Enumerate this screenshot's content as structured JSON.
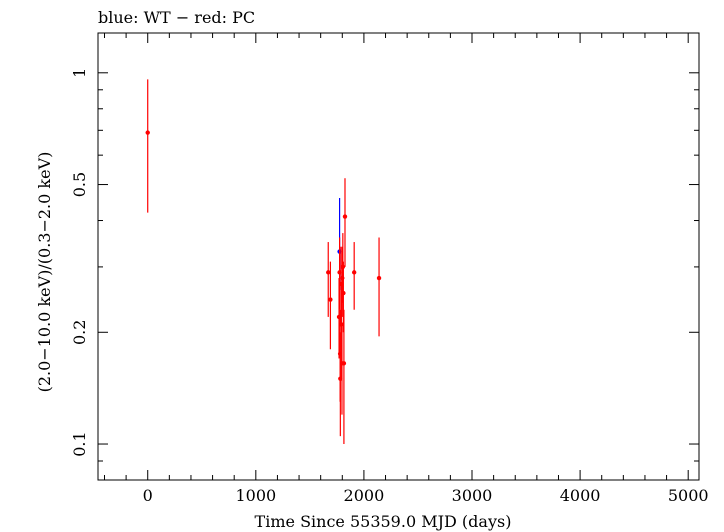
{
  "header": {
    "title": "blue: WT − red: PC"
  },
  "chart_data": {
    "type": "scatter",
    "title": "blue: WT − red: PC",
    "xlabel": "Time Since 55359.0 MJD (days)",
    "ylabel": "(2.0−10.0 keV)/(0.3−2.0 keV)",
    "xlim": [
      -460,
      5100
    ],
    "ylim": [
      0.08,
      1.28
    ],
    "yscale": "log",
    "xticks": [
      0,
      1000,
      2000,
      3000,
      4000,
      5000
    ],
    "xtick_labels": [
      "0",
      "1000",
      "2000",
      "3000",
      "4000",
      "5000"
    ],
    "yticks": [
      0.1,
      0.2,
      0.5,
      1
    ],
    "ytick_labels": [
      "0.1",
      "0.2",
      "0.5",
      "1"
    ],
    "grid": false,
    "series": [
      {
        "mode": "WT",
        "color": "#0000ff",
        "points": [
          {
            "x": 1775,
            "y": 0.33,
            "ylo": 0.26,
            "yhi": 0.46
          }
        ]
      },
      {
        "mode": "PC",
        "color": "#ff0000",
        "points": [
          {
            "x": 0,
            "y": 0.69,
            "ylo": 0.42,
            "yhi": 0.96
          },
          {
            "x": 1670,
            "y": 0.29,
            "ylo": 0.22,
            "yhi": 0.35
          },
          {
            "x": 1690,
            "y": 0.245,
            "ylo": 0.18,
            "yhi": 0.31
          },
          {
            "x": 1770,
            "y": 0.22,
            "ylo": 0.17,
            "yhi": 0.28
          },
          {
            "x": 1775,
            "y": 0.29,
            "ylo": 0.23,
            "yhi": 0.36
          },
          {
            "x": 1780,
            "y": 0.175,
            "ylo": 0.13,
            "yhi": 0.23
          },
          {
            "x": 1782,
            "y": 0.15,
            "ylo": 0.105,
            "yhi": 0.2
          },
          {
            "x": 1788,
            "y": 0.27,
            "ylo": 0.21,
            "yhi": 0.34
          },
          {
            "x": 1792,
            "y": 0.21,
            "ylo": 0.15,
            "yhi": 0.27
          },
          {
            "x": 1797,
            "y": 0.165,
            "ylo": 0.12,
            "yhi": 0.21
          },
          {
            "x": 1800,
            "y": 0.28,
            "ylo": 0.22,
            "yhi": 0.34
          },
          {
            "x": 1805,
            "y": 0.3,
            "ylo": 0.24,
            "yhi": 0.37
          },
          {
            "x": 1810,
            "y": 0.255,
            "ylo": 0.2,
            "yhi": 0.31
          },
          {
            "x": 1815,
            "y": 0.165,
            "ylo": 0.1,
            "yhi": 0.23
          },
          {
            "x": 1825,
            "y": 0.41,
            "ylo": 0.3,
            "yhi": 0.52
          },
          {
            "x": 1910,
            "y": 0.29,
            "ylo": 0.23,
            "yhi": 0.35
          },
          {
            "x": 2140,
            "y": 0.28,
            "ylo": 0.195,
            "yhi": 0.36
          }
        ]
      }
    ]
  }
}
